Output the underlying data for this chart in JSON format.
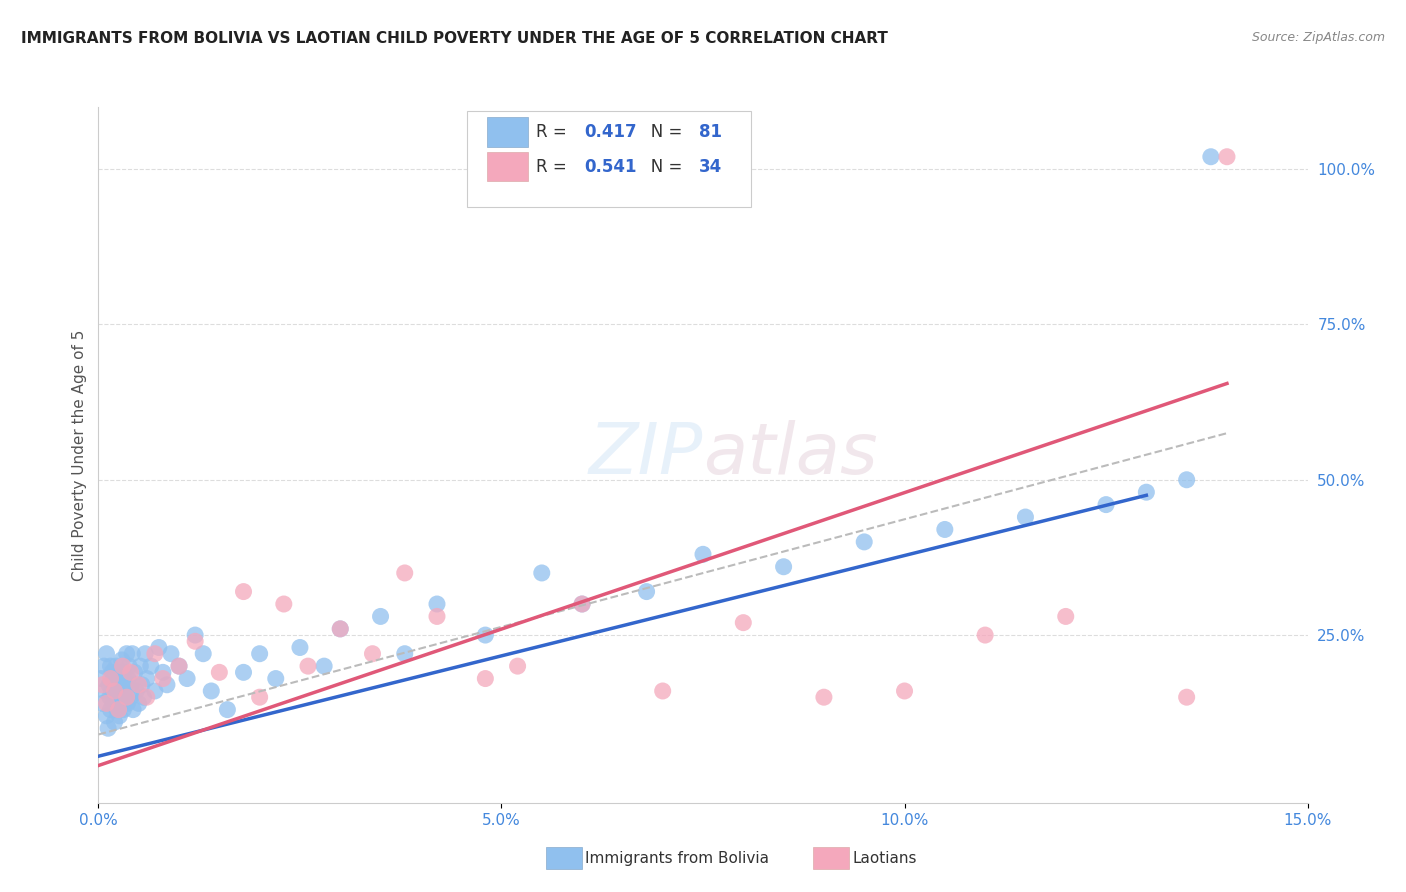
{
  "title": "IMMIGRANTS FROM BOLIVIA VS LAOTIAN CHILD POVERTY UNDER THE AGE OF 5 CORRELATION CHART",
  "source": "Source: ZipAtlas.com",
  "ylabel": "Child Poverty Under the Age of 5",
  "r_blue": 0.417,
  "n_blue": 81,
  "r_pink": 0.541,
  "n_pink": 34,
  "blue_color": "#90C0EE",
  "pink_color": "#F4A8BC",
  "blue_line_color": "#3366CC",
  "pink_line_color": "#E05878",
  "dashed_line_color": "#BBBBBB",
  "legend_label_blue": "Immigrants from Bolivia",
  "legend_label_pink": "Laotians",
  "xlim": [
    0.0,
    0.15
  ],
  "ylim": [
    -0.02,
    1.1
  ],
  "bg_color": "#FFFFFF",
  "grid_color": "#DDDDDD",
  "right_axis_color": "#4488DD",
  "blue_line_x0": 0.0,
  "blue_line_x1": 0.13,
  "blue_line_y0": 0.055,
  "blue_line_y1": 0.475,
  "pink_line_x0": 0.0,
  "pink_line_x1": 0.14,
  "pink_line_y0": 0.04,
  "pink_line_y1": 0.655,
  "dashed_line_x0": 0.0,
  "dashed_line_x1": 0.14,
  "dashed_line_y0": 0.09,
  "dashed_line_y1": 0.575,
  "blue_scatter_x": [
    0.0003,
    0.0005,
    0.0007,
    0.0008,
    0.001,
    0.001,
    0.0012,
    0.0013,
    0.0014,
    0.0015,
    0.0015,
    0.0016,
    0.0017,
    0.0018,
    0.0019,
    0.002,
    0.002,
    0.0021,
    0.0022,
    0.0023,
    0.0024,
    0.0025,
    0.0026,
    0.0027,
    0.0028,
    0.0029,
    0.003,
    0.0031,
    0.0032,
    0.0033,
    0.0034,
    0.0035,
    0.0036,
    0.0037,
    0.0038,
    0.004,
    0.0041,
    0.0042,
    0.0043,
    0.0045,
    0.0047,
    0.005,
    0.0052,
    0.0054,
    0.0056,
    0.0058,
    0.006,
    0.0065,
    0.007,
    0.0075,
    0.008,
    0.0085,
    0.009,
    0.01,
    0.011,
    0.012,
    0.013,
    0.014,
    0.016,
    0.018,
    0.02,
    0.022,
    0.025,
    0.028,
    0.03,
    0.035,
    0.038,
    0.042,
    0.048,
    0.055,
    0.06,
    0.068,
    0.075,
    0.085,
    0.095,
    0.105,
    0.115,
    0.125,
    0.13,
    0.135,
    0.138
  ],
  "blue_scatter_y": [
    0.18,
    0.14,
    0.2,
    0.16,
    0.12,
    0.22,
    0.1,
    0.17,
    0.15,
    0.13,
    0.2,
    0.16,
    0.19,
    0.14,
    0.18,
    0.11,
    0.17,
    0.15,
    0.2,
    0.13,
    0.16,
    0.19,
    0.12,
    0.18,
    0.14,
    0.21,
    0.16,
    0.13,
    0.19,
    0.15,
    0.17,
    0.22,
    0.14,
    0.18,
    0.2,
    0.15,
    0.17,
    0.22,
    0.13,
    0.19,
    0.16,
    0.14,
    0.2,
    0.17,
    0.15,
    0.22,
    0.18,
    0.2,
    0.16,
    0.23,
    0.19,
    0.17,
    0.22,
    0.2,
    0.18,
    0.25,
    0.22,
    0.16,
    0.13,
    0.19,
    0.22,
    0.18,
    0.23,
    0.2,
    0.26,
    0.28,
    0.22,
    0.3,
    0.25,
    0.35,
    0.3,
    0.32,
    0.38,
    0.36,
    0.4,
    0.42,
    0.44,
    0.46,
    0.48,
    0.5,
    1.02
  ],
  "pink_scatter_x": [
    0.0005,
    0.001,
    0.0015,
    0.002,
    0.0025,
    0.003,
    0.0035,
    0.004,
    0.005,
    0.006,
    0.007,
    0.008,
    0.01,
    0.012,
    0.015,
    0.018,
    0.02,
    0.023,
    0.026,
    0.03,
    0.034,
    0.038,
    0.042,
    0.048,
    0.052,
    0.06,
    0.07,
    0.08,
    0.09,
    0.1,
    0.11,
    0.12,
    0.135,
    0.14
  ],
  "pink_scatter_y": [
    0.17,
    0.14,
    0.18,
    0.16,
    0.13,
    0.2,
    0.15,
    0.19,
    0.17,
    0.15,
    0.22,
    0.18,
    0.2,
    0.24,
    0.19,
    0.32,
    0.15,
    0.3,
    0.2,
    0.26,
    0.22,
    0.35,
    0.28,
    0.18,
    0.2,
    0.3,
    0.16,
    0.27,
    0.15,
    0.16,
    0.25,
    0.28,
    0.15,
    1.02
  ]
}
